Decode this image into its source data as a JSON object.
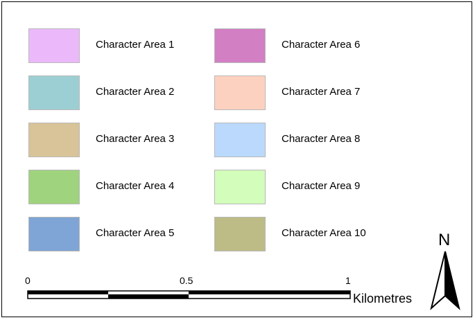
{
  "legend": {
    "items": [
      {
        "label": "Character Area 1",
        "color": "#ebb9fa"
      },
      {
        "label": "Character Area 2",
        "color": "#9ccfd3"
      },
      {
        "label": "Character Area 3",
        "color": "#d8c498"
      },
      {
        "label": "Character Area 4",
        "color": "#9fd37d"
      },
      {
        "label": "Character Area 5",
        "color": "#7ea5d5"
      },
      {
        "label": "Character Area 6",
        "color": "#d37fc4"
      },
      {
        "label": "Character Area 7",
        "color": "#fdd1bf"
      },
      {
        "label": "Character Area 8",
        "color": "#bbd9fd"
      },
      {
        "label": "Character Area 9",
        "color": "#d2fdbb"
      },
      {
        "label": "Character Area 10",
        "color": "#bdbc86"
      }
    ]
  },
  "scalebar": {
    "tick_labels": [
      "0",
      "0.5",
      "1"
    ],
    "unit": "Kilometres"
  },
  "north_arrow": {
    "label": "N",
    "icon": "north-arrow-icon"
  }
}
